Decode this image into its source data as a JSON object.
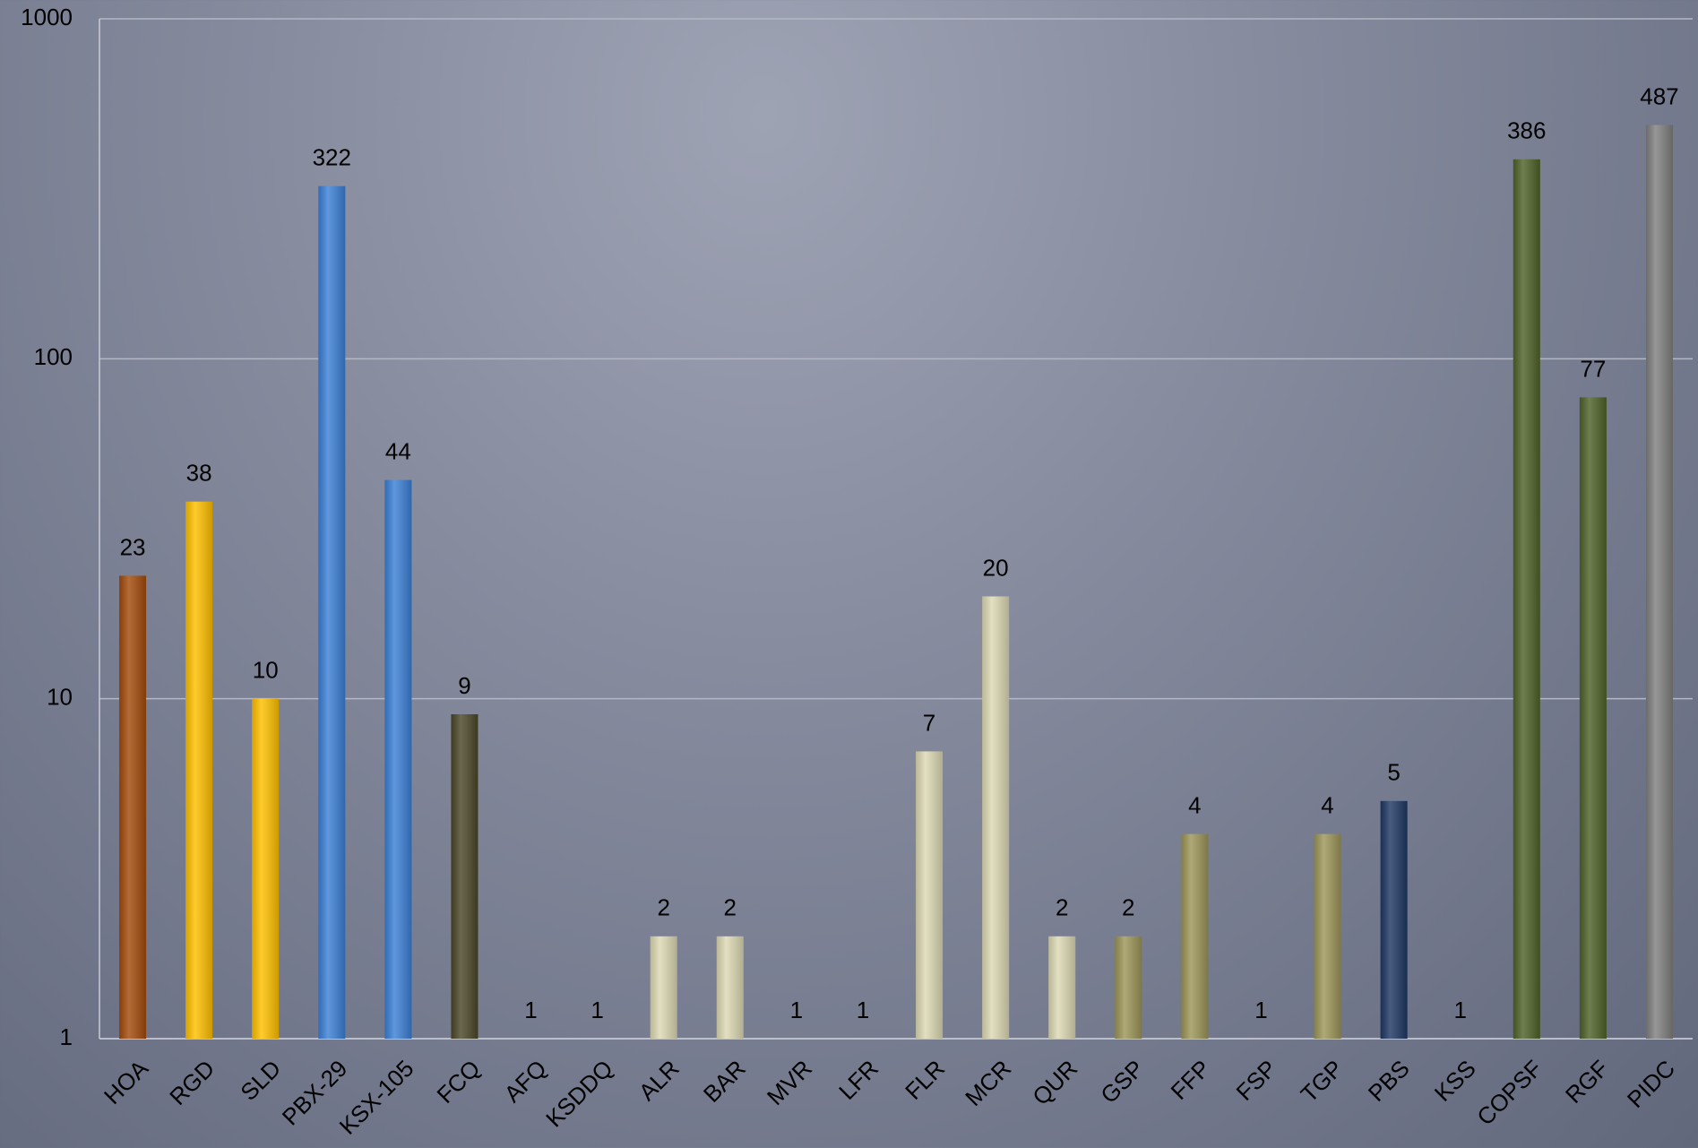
{
  "chart_data": {
    "type": "bar",
    "categories": [
      "HOA",
      "RGD",
      "SLD",
      "PBX-29",
      "KSX-105",
      "FCQ",
      "AFQ",
      "KSDDQ",
      "ALR",
      "BAR",
      "MVR",
      "LFR",
      "FLR",
      "MCR",
      "QUR",
      "GSP",
      "FFP",
      "FSP",
      "TGP",
      "PBS",
      "KSS",
      "COPSF",
      "RGF",
      "PIDC"
    ],
    "values": [
      23,
      38,
      10,
      322,
      44,
      9,
      1,
      1,
      2,
      2,
      1,
      1,
      7,
      20,
      2,
      2,
      4,
      1,
      4,
      5,
      1,
      386,
      77,
      487
    ],
    "colors": [
      "#a34b0b",
      "#ffc000",
      "#ffc000",
      "#3c80d6",
      "#3c80d6",
      "#4b4729",
      "#ddd9b4",
      "#ddd9b4",
      "#ddd9b4",
      "#ddd9b4",
      "#ddd9b4",
      "#ddd9b4",
      "#ddd9b4",
      "#ddd9b4",
      "#ddd9b4",
      "#9c9658",
      "#9c9658",
      "#9c9658",
      "#9c9658",
      "#1f3864",
      "#1f3864",
      "#4f6228",
      "#4f6228",
      "#808080"
    ],
    "log_scale": true,
    "ylim": [
      1,
      1000
    ],
    "yticks": [
      1,
      10,
      100,
      1000
    ],
    "grid": true
  }
}
